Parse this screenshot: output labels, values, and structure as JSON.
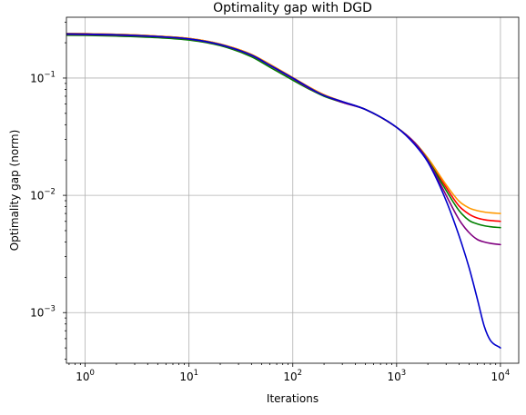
{
  "chart_data": {
    "type": "line",
    "title": "Optimality gap with DGD",
    "xlabel": "Iterations",
    "ylabel": "Optimality gap (norm)",
    "xscale": "log",
    "yscale": "log",
    "xlim": [
      0.66,
      15000
    ],
    "ylim": [
      0.00037,
      0.33
    ],
    "grid": true,
    "x_ticks": [
      {
        "value": 1,
        "base": "10",
        "exp": "0"
      },
      {
        "value": 10,
        "base": "10",
        "exp": "1"
      },
      {
        "value": 100,
        "base": "10",
        "exp": "2"
      },
      {
        "value": 1000,
        "base": "10",
        "exp": "3"
      },
      {
        "value": 10000,
        "base": "10",
        "exp": "4"
      }
    ],
    "y_ticks": [
      {
        "value": 0.001,
        "base": "10",
        "exp": "−3"
      },
      {
        "value": 0.01,
        "base": "10",
        "exp": "−2"
      },
      {
        "value": 0.1,
        "base": "10",
        "exp": "−1"
      }
    ],
    "x": [
      0.66,
      1,
      2,
      5,
      10,
      20,
      40,
      60,
      100,
      150,
      200,
      300,
      500,
      1000,
      1500,
      2000,
      3000,
      4000,
      5000,
      6000,
      7000,
      8000,
      10000
    ],
    "series": [
      {
        "color": "#ff0000",
        "values": [
          0.24,
          0.239,
          0.236,
          0.228,
          0.218,
          0.195,
          0.159,
          0.131,
          0.101,
          0.082,
          0.072,
          0.063,
          0.054,
          0.038,
          0.028,
          0.0205,
          0.0117,
          0.0081,
          0.0069,
          0.0064,
          0.0062,
          0.0061,
          0.006
        ]
      },
      {
        "color": "#ff9900",
        "values": [
          0.24,
          0.239,
          0.236,
          0.228,
          0.218,
          0.195,
          0.159,
          0.131,
          0.101,
          0.082,
          0.072,
          0.063,
          0.054,
          0.038,
          0.028,
          0.0208,
          0.0123,
          0.0089,
          0.0078,
          0.0074,
          0.0072,
          0.0071,
          0.007
        ]
      },
      {
        "color": "#008000",
        "values": [
          0.232,
          0.231,
          0.228,
          0.221,
          0.211,
          0.189,
          0.152,
          0.124,
          0.096,
          0.079,
          0.07,
          0.062,
          0.054,
          0.038,
          0.028,
          0.02,
          0.011,
          0.0074,
          0.0061,
          0.0057,
          0.0055,
          0.0054,
          0.0053
        ]
      },
      {
        "color": "#800080",
        "values": [
          0.236,
          0.235,
          0.232,
          0.225,
          0.215,
          0.192,
          0.156,
          0.128,
          0.099,
          0.08,
          0.071,
          0.062,
          0.054,
          0.038,
          0.028,
          0.0198,
          0.01,
          0.0062,
          0.0048,
          0.0042,
          0.004,
          0.0039,
          0.0038
        ]
      },
      {
        "color": "#0000cc",
        "values": [
          0.238,
          0.237,
          0.234,
          0.226,
          0.216,
          0.193,
          0.157,
          0.129,
          0.1,
          0.081,
          0.071,
          0.063,
          0.054,
          0.038,
          0.027,
          0.0192,
          0.009,
          0.0045,
          0.0024,
          0.0013,
          0.00076,
          0.00058,
          0.0005
        ]
      }
    ]
  }
}
